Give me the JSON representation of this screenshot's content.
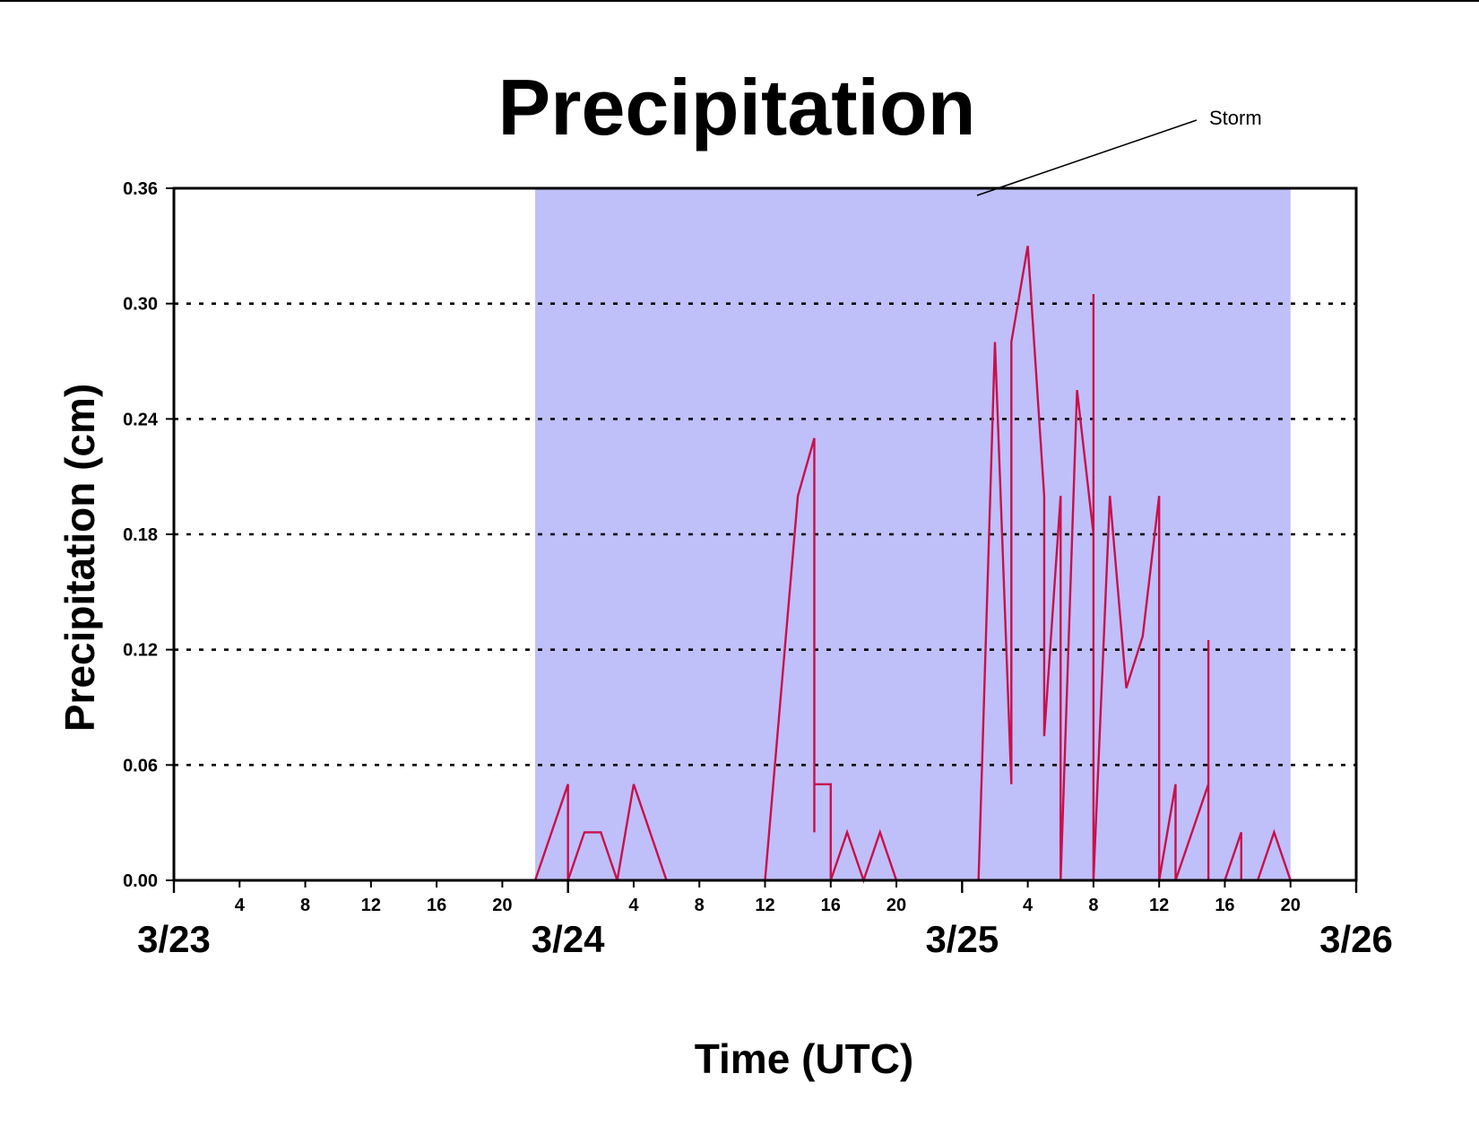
{
  "chart_data": {
    "type": "line",
    "title": "Precipitation",
    "xlabel": "Time (UTC)",
    "ylabel": "Precipitation (cm)",
    "x_unit": "hour",
    "xlim": [
      "3/23 00",
      "3/26 00"
    ],
    "ylim": [
      0,
      0.36
    ],
    "yticks": [
      "0.00",
      "0.06",
      "0.12",
      "0.18",
      "0.24",
      "0.30",
      "0.36"
    ],
    "hour_tick_labels": [
      "4",
      "8",
      "12",
      "16",
      "20"
    ],
    "date_labels": [
      "3/23",
      "3/24",
      "3/25",
      "3/26"
    ],
    "grid": "horizontal dotted",
    "line_color": "#c8104c",
    "shaded_region": {
      "label": "Storm",
      "start": "3/23 22",
      "end": "3/25 20",
      "color": "#bfbffa"
    },
    "series": [
      {
        "points": [
          [
            "3/23 00",
            0
          ],
          [
            "3/23 22",
            0
          ],
          [
            "3/24 00",
            0.05
          ],
          [
            "3/24 00",
            0
          ],
          [
            "3/24 01",
            0.025
          ],
          [
            "3/24 02",
            0.025
          ],
          [
            "3/24 03",
            0
          ],
          [
            "3/24 04",
            0.05
          ],
          [
            "3/24 06",
            0
          ],
          [
            "3/24 12",
            0
          ],
          [
            "3/24 14",
            0.2
          ],
          [
            "3/24 15",
            0.23
          ],
          [
            "3/24 15",
            0.025
          ],
          [
            "3/24 15",
            0.05
          ],
          [
            "3/24 16",
            0.05
          ],
          [
            "3/24 16",
            0
          ],
          [
            "3/24 17",
            0.025
          ],
          [
            "3/24 18",
            0
          ],
          [
            "3/24 19",
            0.025
          ],
          [
            "3/24 20",
            0
          ],
          [
            "3/25 01",
            0
          ],
          [
            "3/25 02",
            0.28
          ],
          [
            "3/25 03",
            0.05
          ],
          [
            "3/25 03",
            0.28
          ],
          [
            "3/25 04",
            0.33
          ],
          [
            "3/25 05",
            0.2
          ],
          [
            "3/25 05",
            0.075
          ],
          [
            "3/25 06",
            0.2
          ],
          [
            "3/25 06",
            0.2
          ],
          [
            "3/25 06",
            0
          ],
          [
            "3/25 07",
            0.255
          ],
          [
            "3/25 08",
            0.18
          ],
          [
            "3/25 08",
            0.305
          ],
          [
            "3/25 08",
            0
          ],
          [
            "3/25 09",
            0.2
          ],
          [
            "3/25 10",
            0.1
          ],
          [
            "3/25 11",
            0.127
          ],
          [
            "3/25 12",
            0.2
          ],
          [
            "3/25 12",
            0
          ],
          [
            "3/25 13",
            0.05
          ],
          [
            "3/25 13",
            0
          ],
          [
            "3/25 14",
            0.025
          ],
          [
            "3/25 14",
            0.025
          ],
          [
            "3/25 15",
            0.05
          ],
          [
            "3/25 15",
            0.125
          ],
          [
            "3/25 15",
            0
          ],
          [
            "3/25 16",
            0
          ],
          [
            "3/25 17",
            0.025
          ],
          [
            "3/25 17",
            0
          ],
          [
            "3/25 18",
            0
          ],
          [
            "3/25 19",
            0.025
          ],
          [
            "3/25 20",
            0
          ],
          [
            "3/26 00",
            0
          ]
        ]
      }
    ]
  }
}
